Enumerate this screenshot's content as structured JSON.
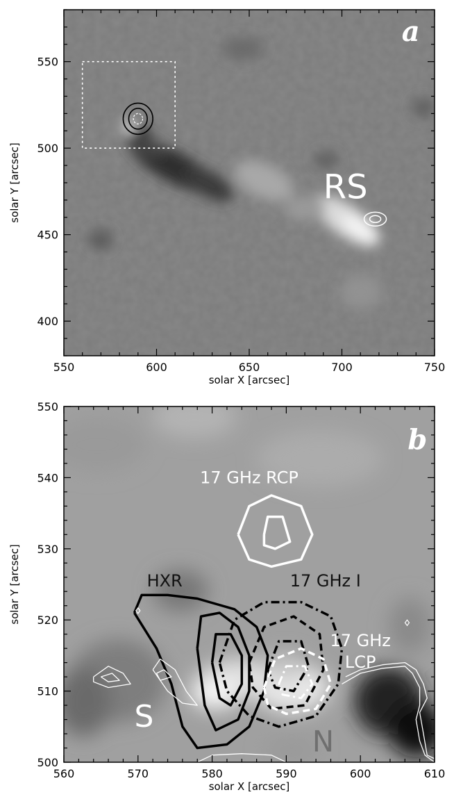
{
  "panels": {
    "a": {
      "letter": "a",
      "xlabel": "solar X [arcsec]",
      "ylabel": "solar Y [arcsec]",
      "xlim": [
        550,
        750
      ],
      "ylim": [
        380,
        580
      ],
      "xticks": [
        550,
        600,
        650,
        700,
        750
      ],
      "yticks": [
        400,
        450,
        500,
        550
      ],
      "labels": {
        "rs": "RS"
      },
      "box": {
        "x": [
          560,
          610
        ],
        "y": [
          500,
          550
        ]
      },
      "contours_black": {
        "center": [
          590,
          517
        ],
        "radii": [
          [
            8,
            9
          ],
          [
            5,
            6
          ]
        ]
      },
      "contours_white": {
        "center": [
          718,
          459
        ],
        "radii": [
          [
            6,
            4
          ],
          [
            3,
            2
          ]
        ]
      }
    },
    "b": {
      "letter": "b",
      "xlabel": "solar X [arcsec]",
      "ylabel": "solar Y [arcsec]",
      "xlim": [
        560,
        610
      ],
      "ylim": [
        500,
        550
      ],
      "xticks": [
        560,
        570,
        580,
        590,
        600,
        610
      ],
      "yticks": [
        500,
        510,
        520,
        530,
        540,
        550
      ],
      "labels": {
        "rcp": "17 GHz RCP",
        "hxr": "HXR",
        "intensity": "17 GHz I",
        "lcp_line1": "17 GHz",
        "lcp_line2": "LCP",
        "s": "S",
        "n": "N"
      },
      "rcp_outer": [
        [
          583.5,
          532
        ],
        [
          585,
          536
        ],
        [
          588,
          537.5
        ],
        [
          592,
          536
        ],
        [
          593.5,
          532
        ],
        [
          592,
          528.5
        ],
        [
          588,
          527.5
        ],
        [
          585,
          528.5
        ]
      ],
      "rcp_inner": [
        [
          587,
          532
        ],
        [
          587.5,
          534.5
        ],
        [
          589.5,
          534.5
        ],
        [
          590.5,
          531
        ],
        [
          588.5,
          530
        ],
        [
          587,
          530.5
        ]
      ],
      "hxr_outer": [
        [
          569.5,
          521
        ],
        [
          570.5,
          523.5
        ],
        [
          574,
          523.5
        ],
        [
          578,
          523
        ],
        [
          583,
          521.5
        ],
        [
          586,
          519
        ],
        [
          587.5,
          515
        ],
        [
          587,
          510
        ],
        [
          585,
          505
        ],
        [
          582,
          502.5
        ],
        [
          578,
          502
        ],
        [
          576,
          505
        ],
        [
          574.5,
          511
        ],
        [
          572.5,
          516
        ],
        [
          569.5,
          521
        ]
      ],
      "hxr_mid": [
        [
          578,
          516
        ],
        [
          578.5,
          520.5
        ],
        [
          581,
          521
        ],
        [
          583.5,
          519
        ],
        [
          585,
          515
        ],
        [
          585,
          510
        ],
        [
          583.5,
          506
        ],
        [
          580.5,
          504.5
        ],
        [
          579,
          508
        ],
        [
          578.5,
          512
        ],
        [
          578,
          516
        ]
      ],
      "hxr_inner": [
        [
          580,
          514
        ],
        [
          580.5,
          518
        ],
        [
          582.5,
          518
        ],
        [
          584,
          515
        ],
        [
          584,
          511
        ],
        [
          582.5,
          508
        ],
        [
          581,
          509
        ],
        [
          580,
          514
        ]
      ],
      "i_outer": [
        [
          581,
          514
        ],
        [
          583,
          520
        ],
        [
          587,
          522.5
        ],
        [
          592,
          522.5
        ],
        [
          596,
          520.5
        ],
        [
          597.5,
          516
        ],
        [
          597,
          511
        ],
        [
          594,
          506.5
        ],
        [
          589,
          505
        ],
        [
          585,
          506.5
        ],
        [
          582,
          510
        ],
        [
          581,
          514
        ]
      ],
      "i_mid": [
        [
          585,
          514
        ],
        [
          587,
          519
        ],
        [
          591,
          520.5
        ],
        [
          594.5,
          518
        ],
        [
          595,
          513
        ],
        [
          592.5,
          508
        ],
        [
          588,
          507.5
        ],
        [
          585.5,
          510.5
        ],
        [
          585,
          514
        ]
      ],
      "i_inner": [
        [
          587.5,
          513
        ],
        [
          589,
          517
        ],
        [
          592,
          517
        ],
        [
          593,
          513.5
        ],
        [
          591,
          510
        ],
        [
          588.5,
          510.5
        ],
        [
          587.5,
          513
        ]
      ],
      "lcp_white_dashed": [
        [
          587,
          510.5
        ],
        [
          588.5,
          514.5
        ],
        [
          592,
          516
        ],
        [
          595,
          514.5
        ],
        [
          596,
          511
        ],
        [
          594,
          507.5
        ],
        [
          590,
          506.8
        ],
        [
          587.5,
          508
        ],
        [
          587,
          510.5
        ]
      ],
      "lcp_white_inner": [
        [
          589,
          511
        ],
        [
          590,
          513.5
        ],
        [
          592.5,
          513.5
        ],
        [
          593.5,
          511
        ],
        [
          592,
          509
        ],
        [
          589.5,
          509.5
        ],
        [
          589,
          511
        ]
      ],
      "s_outer": [
        [
          572,
          513
        ],
        [
          573,
          514.5
        ],
        [
          575,
          513
        ],
        [
          576.5,
          510
        ],
        [
          578,
          508
        ],
        [
          576,
          508.3
        ],
        [
          574,
          510
        ],
        [
          572,
          513
        ]
      ],
      "s_inner": [
        [
          572.5,
          512.5
        ],
        [
          573.5,
          513
        ],
        [
          574.5,
          512
        ],
        [
          573,
          511.5
        ],
        [
          572.5,
          512.5
        ]
      ],
      "s2_outer": [
        [
          564,
          512
        ],
        [
          566,
          513.5
        ],
        [
          568,
          512.5
        ],
        [
          569,
          511
        ],
        [
          566,
          510.5
        ],
        [
          564,
          511.3
        ],
        [
          564,
          512
        ]
      ],
      "s2_inner": [
        [
          565,
          512
        ],
        [
          566.5,
          512.5
        ],
        [
          567.5,
          511.5
        ],
        [
          566,
          511.3
        ],
        [
          565,
          512
        ]
      ],
      "lcp_right": [
        [
          598,
          512
        ],
        [
          600,
          513
        ],
        [
          603,
          513.7
        ],
        [
          606,
          514
        ],
        [
          607.5,
          513
        ],
        [
          608.5,
          511
        ],
        [
          609,
          509
        ],
        [
          608,
          507
        ],
        [
          608.5,
          504
        ],
        [
          609,
          501
        ],
        [
          610,
          500.5
        ]
      ],
      "lcp_right2": [
        [
          597.5,
          511
        ],
        [
          600,
          512.5
        ],
        [
          603,
          513.2
        ],
        [
          606,
          513.5
        ],
        [
          607,
          512.5
        ],
        [
          608,
          510.5
        ],
        [
          608,
          508
        ],
        [
          607.5,
          506
        ],
        [
          608,
          503
        ],
        [
          608.7,
          501
        ],
        [
          610,
          500
        ]
      ],
      "bottom_contour": [
        [
          578,
          500
        ],
        [
          580,
          501
        ],
        [
          584,
          501.2
        ],
        [
          588,
          501
        ],
        [
          590,
          500
        ]
      ]
    }
  }
}
